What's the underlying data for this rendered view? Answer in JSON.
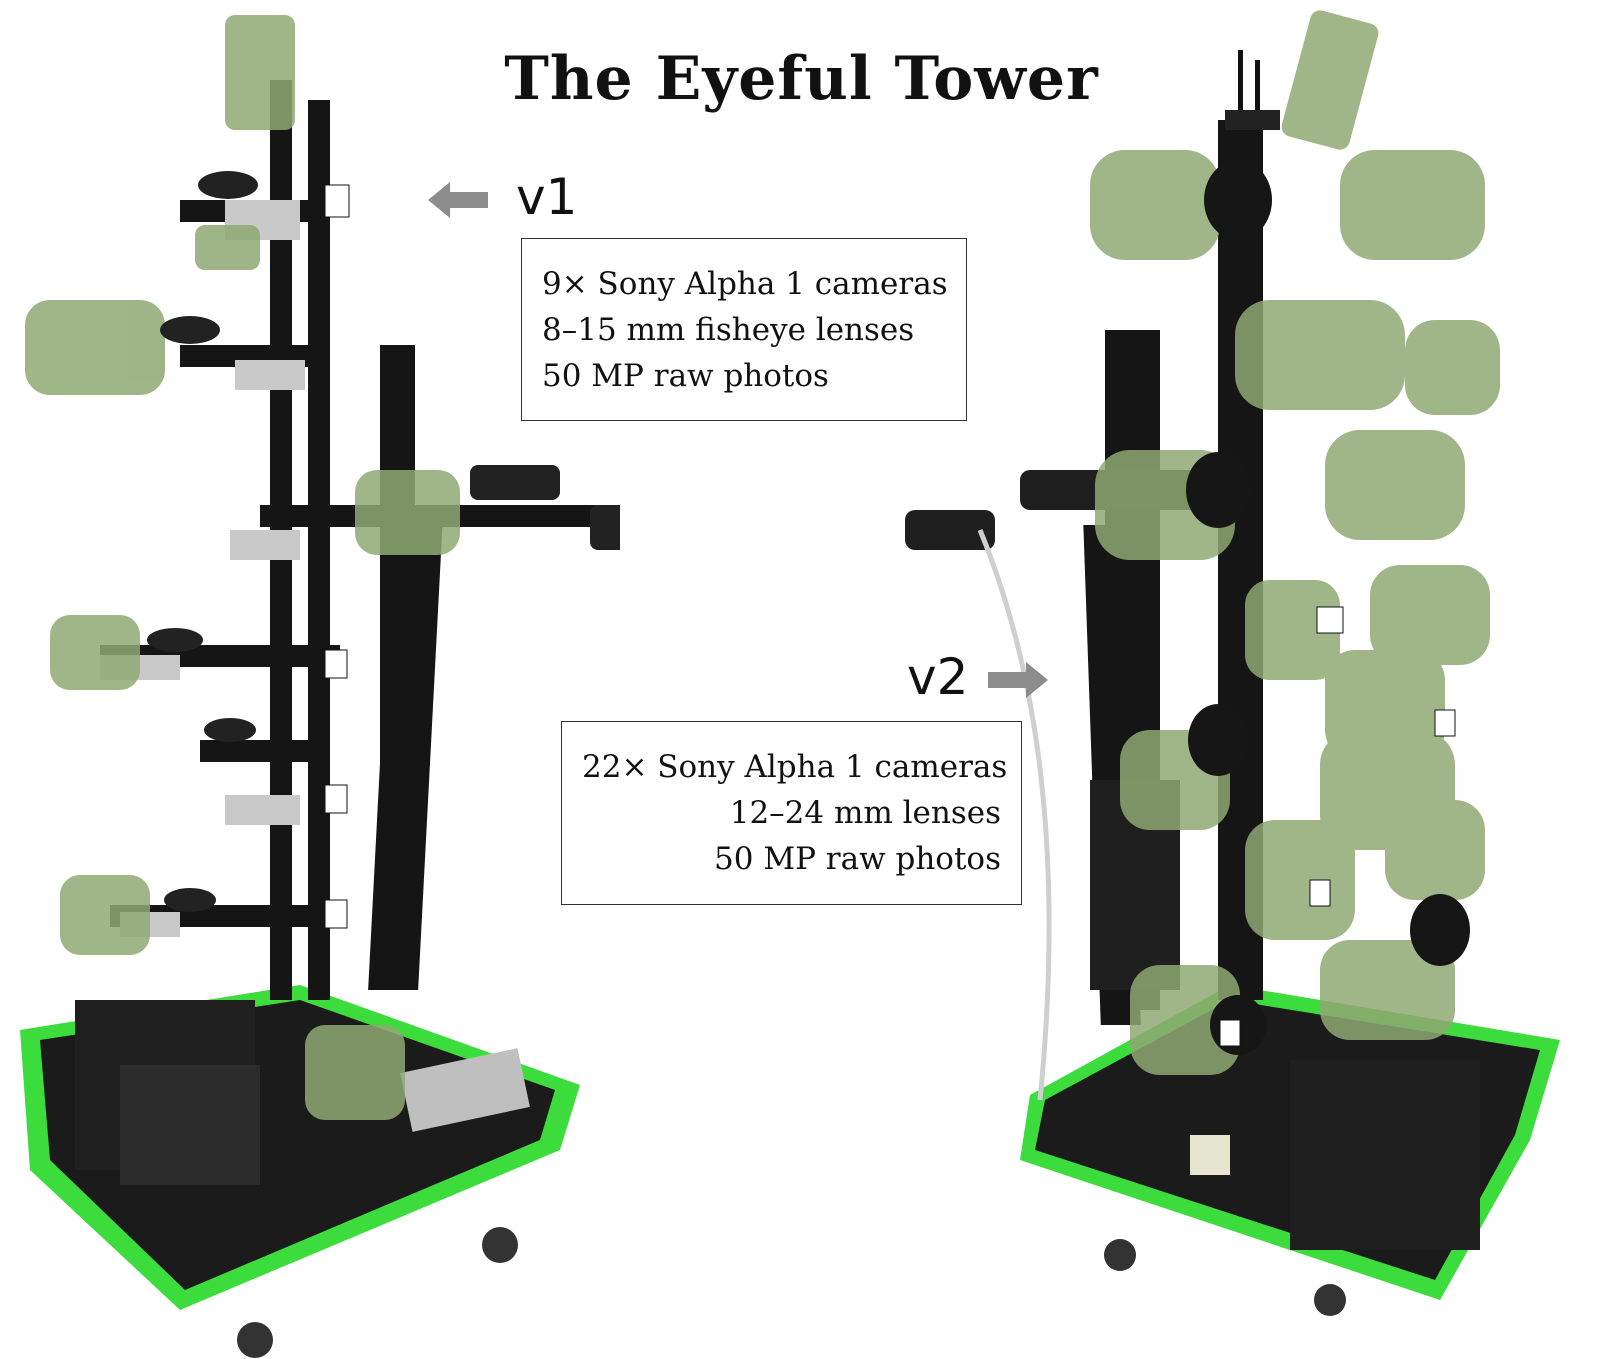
{
  "title": "The Eyeful Tower",
  "v1": {
    "label": "v1",
    "arrow_icon": "left-arrow-icon",
    "specs": [
      "9× Sony Alpha 1 cameras",
      "8–15 mm fisheye lenses",
      "50 MP raw photos"
    ]
  },
  "v2": {
    "label": "v2",
    "arrow_icon": "right-arrow-icon",
    "specs": [
      "22× Sony Alpha 1 cameras",
      "12–24 mm lenses",
      "50 MP raw photos"
    ]
  },
  "colors": {
    "camera_overlay": "#8fa873",
    "frame": "#151515",
    "base_trim": "#3ddc3d",
    "arrow": "#8c8c8c",
    "mount_metal": "#c9c9c9"
  }
}
